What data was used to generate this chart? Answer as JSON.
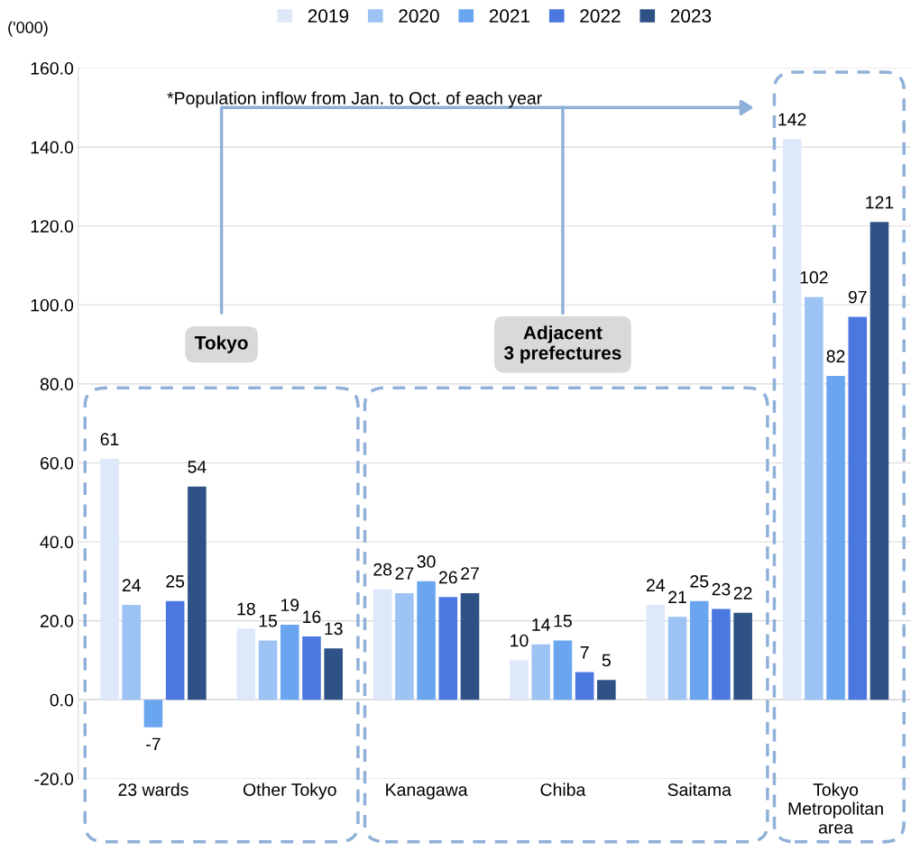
{
  "chart_data": {
    "type": "bar",
    "categories": [
      "23 wards",
      "Other Tokyo",
      "Kanagawa",
      "Chiba",
      "Saitama",
      "Tokyo\nMetropolitan\narea"
    ],
    "series": [
      {
        "name": "2019",
        "color": "#dde8f8",
        "values": [
          61,
          18,
          28,
          10,
          24,
          142
        ]
      },
      {
        "name": "2020",
        "color": "#9dc3f5",
        "values": [
          24,
          15,
          27,
          14,
          21,
          102
        ]
      },
      {
        "name": "2021",
        "color": "#6aa6f0",
        "values": [
          -7,
          19,
          30,
          15,
          25,
          82
        ]
      },
      {
        "name": "2022",
        "color": "#4a78e0",
        "values": [
          25,
          16,
          26,
          7,
          23,
          97
        ]
      },
      {
        "name": "2023",
        "color": "#2f5286",
        "values": [
          54,
          13,
          27,
          5,
          22,
          121
        ]
      }
    ],
    "ylim": [
      -20,
      160
    ],
    "yticks": [
      {
        "value": -20,
        "label": "-20.0"
      },
      {
        "value": 0,
        "label": "0.0"
      },
      {
        "value": 20,
        "label": "20.0"
      },
      {
        "value": 40,
        "label": "40.0"
      },
      {
        "value": 60,
        "label": "60.0"
      },
      {
        "value": 80,
        "label": "80.0"
      },
      {
        "value": 100,
        "label": "100.0"
      },
      {
        "value": 120,
        "label": "120.0"
      },
      {
        "value": 140,
        "label": "140.0"
      },
      {
        "value": 160,
        "label": "160.0"
      }
    ],
    "grid": "y",
    "legend": "top",
    "data_labels": true,
    "annotations": [
      "('000)",
      "*Population inflow from Jan. to Oct. of each year",
      "Tokyo",
      "Adjacent\n3 prefectures"
    ]
  }
}
